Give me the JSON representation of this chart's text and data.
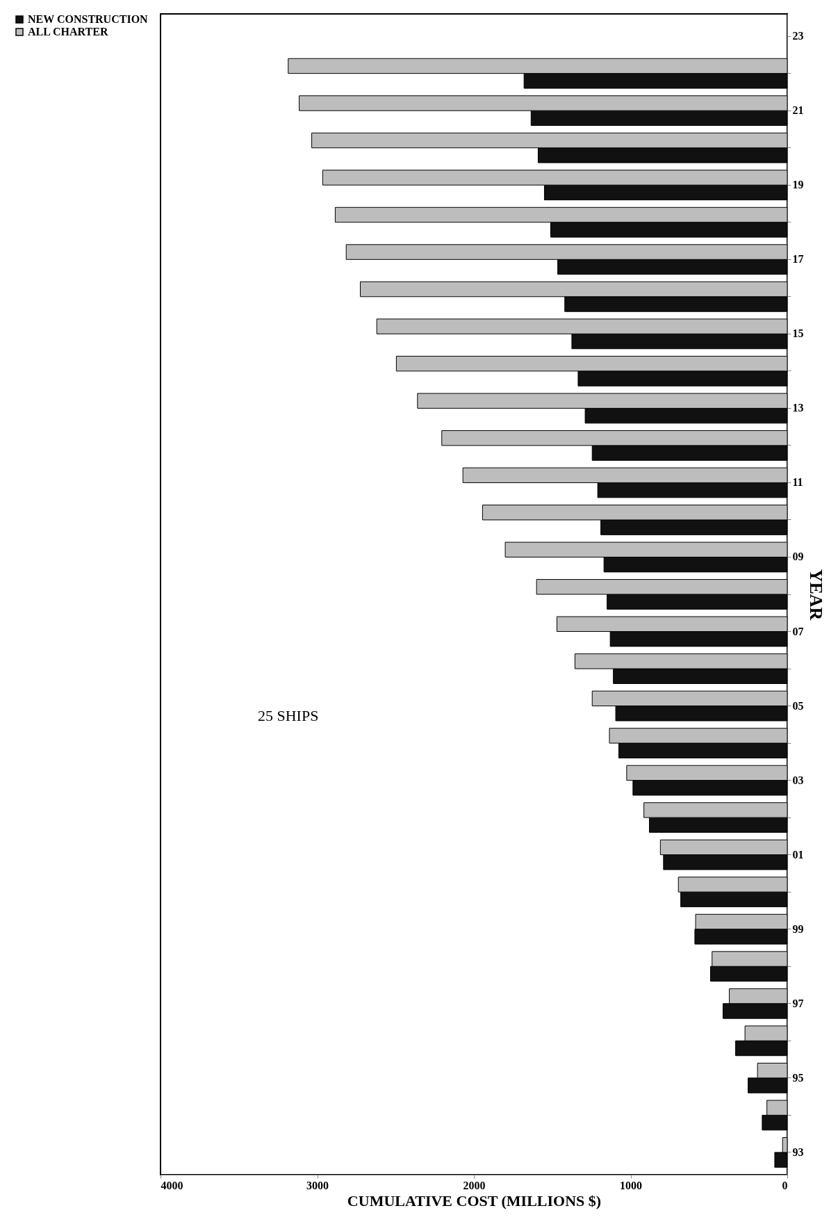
{
  "chart_data": {
    "type": "bar",
    "orientation": "horizontal",
    "xlabel": "CUMULATIVE COST (MILLIONS $)",
    "ylabel": "YEAR",
    "annotations": [
      "25 SHIPS"
    ],
    "categories": [
      "23",
      null,
      "21",
      null,
      "19",
      null,
      "17",
      null,
      "15",
      null,
      "13",
      null,
      "11",
      null,
      "09",
      null,
      "07",
      null,
      "05",
      null,
      "03",
      null,
      "01",
      null,
      "99",
      null,
      "97",
      null,
      "95",
      null,
      "93"
    ],
    "series": [
      {
        "name": "NEW CONSTRUCTION",
        "color": "#111111",
        "values": [
          null,
          1680,
          1635,
          1590,
          1550,
          1510,
          1465,
          1420,
          1375,
          1335,
          1290,
          1245,
          1210,
          1190,
          1170,
          1150,
          1130,
          1110,
          1095,
          1075,
          985,
          880,
          790,
          680,
          590,
          490,
          410,
          330,
          250,
          160,
          80
        ]
      },
      {
        "name": "ALL CHARTER",
        "color": "#bdbdbd",
        "values": [
          null,
          3185,
          3115,
          3035,
          2965,
          2885,
          2815,
          2725,
          2620,
          2495,
          2360,
          2205,
          2070,
          1945,
          1800,
          1600,
          1470,
          1355,
          1245,
          1135,
          1025,
          915,
          810,
          695,
          585,
          480,
          370,
          270,
          190,
          130,
          30
        ]
      }
    ],
    "xlim": [
      4000,
      0
    ],
    "xticks": [
      0,
      1000,
      2000,
      3000,
      4000
    ],
    "grid": false,
    "legend": "left"
  }
}
